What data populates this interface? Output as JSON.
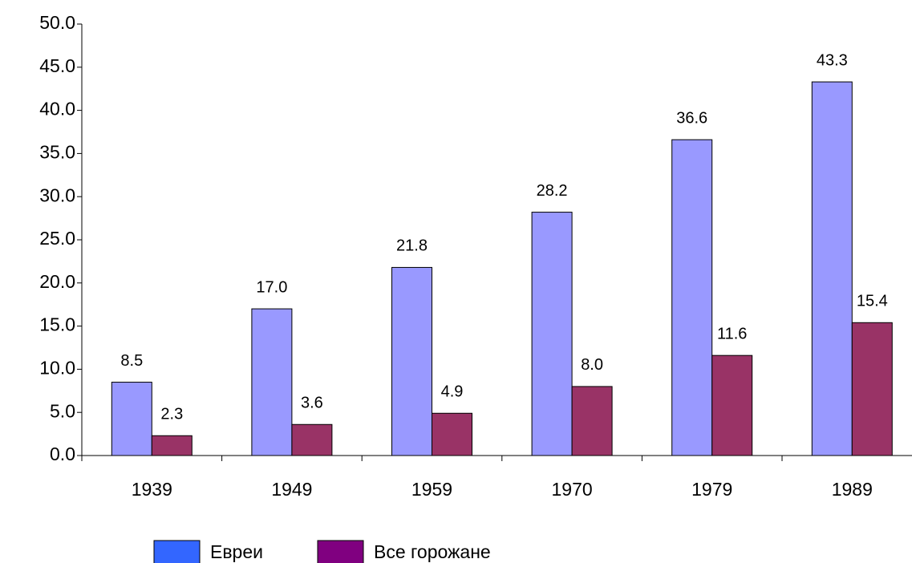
{
  "chart_data": {
    "type": "bar",
    "categories": [
      "1939",
      "1949",
      "1959",
      "1970",
      "1979",
      "1989"
    ],
    "series": [
      {
        "name": "Евреи",
        "color": "#9999ff",
        "legend_color": "#3366ff",
        "values": [
          8.5,
          17.0,
          21.8,
          28.2,
          36.6,
          43.3
        ],
        "value_labels": [
          "8.5",
          "17.0",
          "21.8",
          "28.2",
          "36.6",
          "43.3"
        ]
      },
      {
        "name": "Все горожане",
        "color": "#993366",
        "legend_color": "#800080",
        "values": [
          2.3,
          3.6,
          4.9,
          8.0,
          11.6,
          15.4
        ],
        "value_labels": [
          "2.3",
          "3.6",
          "4.9",
          "8.0",
          "11.6",
          "15.4"
        ]
      }
    ],
    "ylim": [
      0,
      50
    ],
    "yticks": [
      {
        "value": 0,
        "label": "0.0"
      },
      {
        "value": 5,
        "label": "5.0"
      },
      {
        "value": 10,
        "label": "10.0"
      },
      {
        "value": 15,
        "label": "15.0"
      },
      {
        "value": 20,
        "label": "20.0"
      },
      {
        "value": 25,
        "label": "25.0"
      },
      {
        "value": 30,
        "label": "30.0"
      },
      {
        "value": 35,
        "label": "35.0"
      },
      {
        "value": 40,
        "label": "40.0"
      },
      {
        "value": 45,
        "label": "45.0"
      },
      {
        "value": 50,
        "label": "50.0"
      }
    ],
    "grid": false,
    "legend": "bottom"
  }
}
